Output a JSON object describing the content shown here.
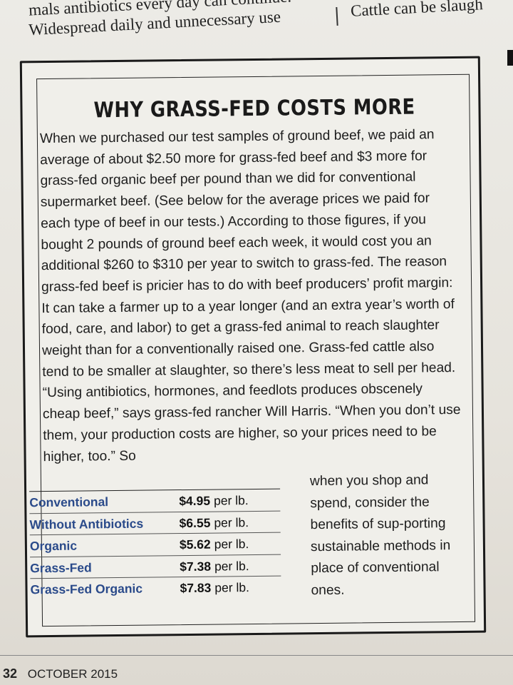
{
  "top": {
    "line1": "mals antibiotics every day can continue.",
    "line2": "Widespread daily and unnecessary use",
    "line3": "Cattle can be slaugh"
  },
  "sidebar": {
    "headline": "WHY GRASS-FED COSTS MORE",
    "body": "When we purchased our test samples of ground beef, we paid an average of about $2.50 more for grass-fed beef and $3 more for grass-fed organic beef per pound than we did for conventional supermarket beef. (See below for the average prices we paid for each type of beef in our tests.) According to those figures, if you bought 2 pounds of ground beef each week, it would cost you an additional $260 to $310 per year to switch to grass-fed. The reason grass-fed beef is pricier has to do with beef producers’ profit margin: It can take a farmer up to a year longer (and an extra year’s worth of food, care, and labor) to get a grass-fed animal to reach slaughter weight than for a conventionally raised one. Grass-fed cattle also tend to be smaller at slaughter, so there’s less meat to sell per head. “Using antibiotics, hormones, and feedlots produces obscenely cheap beef,” says grass-fed rancher Will Harris. “When you don’t use them, your production costs are higher, so your prices need to be higher, too.” So",
    "right_column": "when you shop and spend, consider the benefits of sup-porting sustainable methods in place of conventional ones.",
    "prices": [
      {
        "category": "Conventional",
        "price": "$4.95",
        "unit": "per lb."
      },
      {
        "category": "Without Antibiotics",
        "price": "$6.55",
        "unit": "per lb."
      },
      {
        "category": "Organic",
        "price": "$5.62",
        "unit": "per lb."
      },
      {
        "category": "Grass-Fed",
        "price": "$7.38",
        "unit": "per lb."
      },
      {
        "category": "Grass-Fed Organic",
        "price": "$7.83",
        "unit": "per lb."
      }
    ]
  },
  "footer": {
    "page_number": "32",
    "issue": "OCTOBER 2015"
  },
  "colors": {
    "category_blue": "#2a4a8a",
    "paper": "#ecebe6",
    "ink": "#1c1c1c"
  }
}
